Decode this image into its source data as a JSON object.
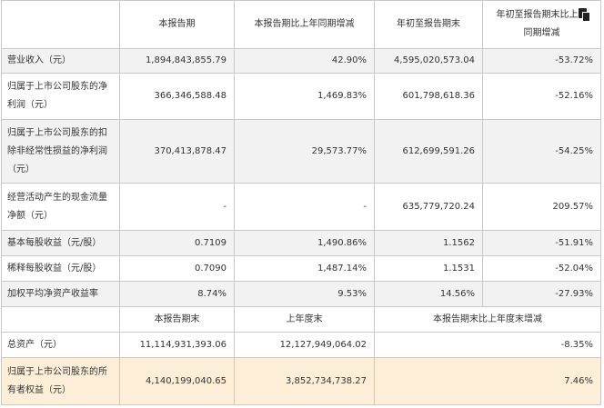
{
  "header": {
    "col1": "本报告期",
    "col2": "本报告期比上年同期增减",
    "col3": "年初至报告期末",
    "col4": "年初至报告期末比上年同期增减"
  },
  "rows": [
    {
      "label": "营业收入（元）",
      "v1": "1,894,843,855.79",
      "v2": "42.90%",
      "v3": "4,595,020,573.04",
      "v4": "-53.72%"
    },
    {
      "label": "归属于上市公司股东的净利润（元）",
      "v1": "366,346,588.48",
      "v2": "1,469.83%",
      "v3": "601,798,618.36",
      "v4": "-52.16%"
    },
    {
      "label": "归属于上市公司股东的扣除非经常性损益的净利润（元）",
      "v1": "370,413,878.47",
      "v2": "29,573.77%",
      "v3": "612,699,591.26",
      "v4": "-54.25%"
    },
    {
      "label": "经营活动产生的现金流量净额（元）",
      "v1": "-",
      "v2": "-",
      "v3": "635,779,720.24",
      "v4": "209.57%"
    },
    {
      "label": "基本每股收益（元/股）",
      "v1": "0.7109",
      "v2": "1,490.86%",
      "v3": "1.1562",
      "v4": "-51.91%"
    },
    {
      "label": "稀释每股收益（元/股）",
      "v1": "0.7090",
      "v2": "1,487.14%",
      "v3": "1.1531",
      "v4": "-52.04%"
    },
    {
      "label": "加权平均净资产收益率",
      "v1": "8.74%",
      "v2": "9.53%",
      "v3": "14.56%",
      "v4": "-27.93%"
    }
  ],
  "header2": {
    "col1": "本报告期末",
    "col2": "上年度末",
    "col3": "本报告期末比上年度末增减"
  },
  "rows2": [
    {
      "label": "总资产（元）",
      "v1": "11,114,931,393.06",
      "v2": "12,127,949,064.02",
      "v3": "-8.35%"
    },
    {
      "label": "归属于上市公司股东的所有者权益（元）",
      "v1": "4,140,199,040.65",
      "v2": "3,852,734,738.27",
      "v3": "7.46%"
    }
  ],
  "colors": {
    "shade": "#f2f2f2",
    "highlight": "#fdefd7",
    "border": "#c9c9c9"
  },
  "icons": [
    "copy-icon"
  ]
}
